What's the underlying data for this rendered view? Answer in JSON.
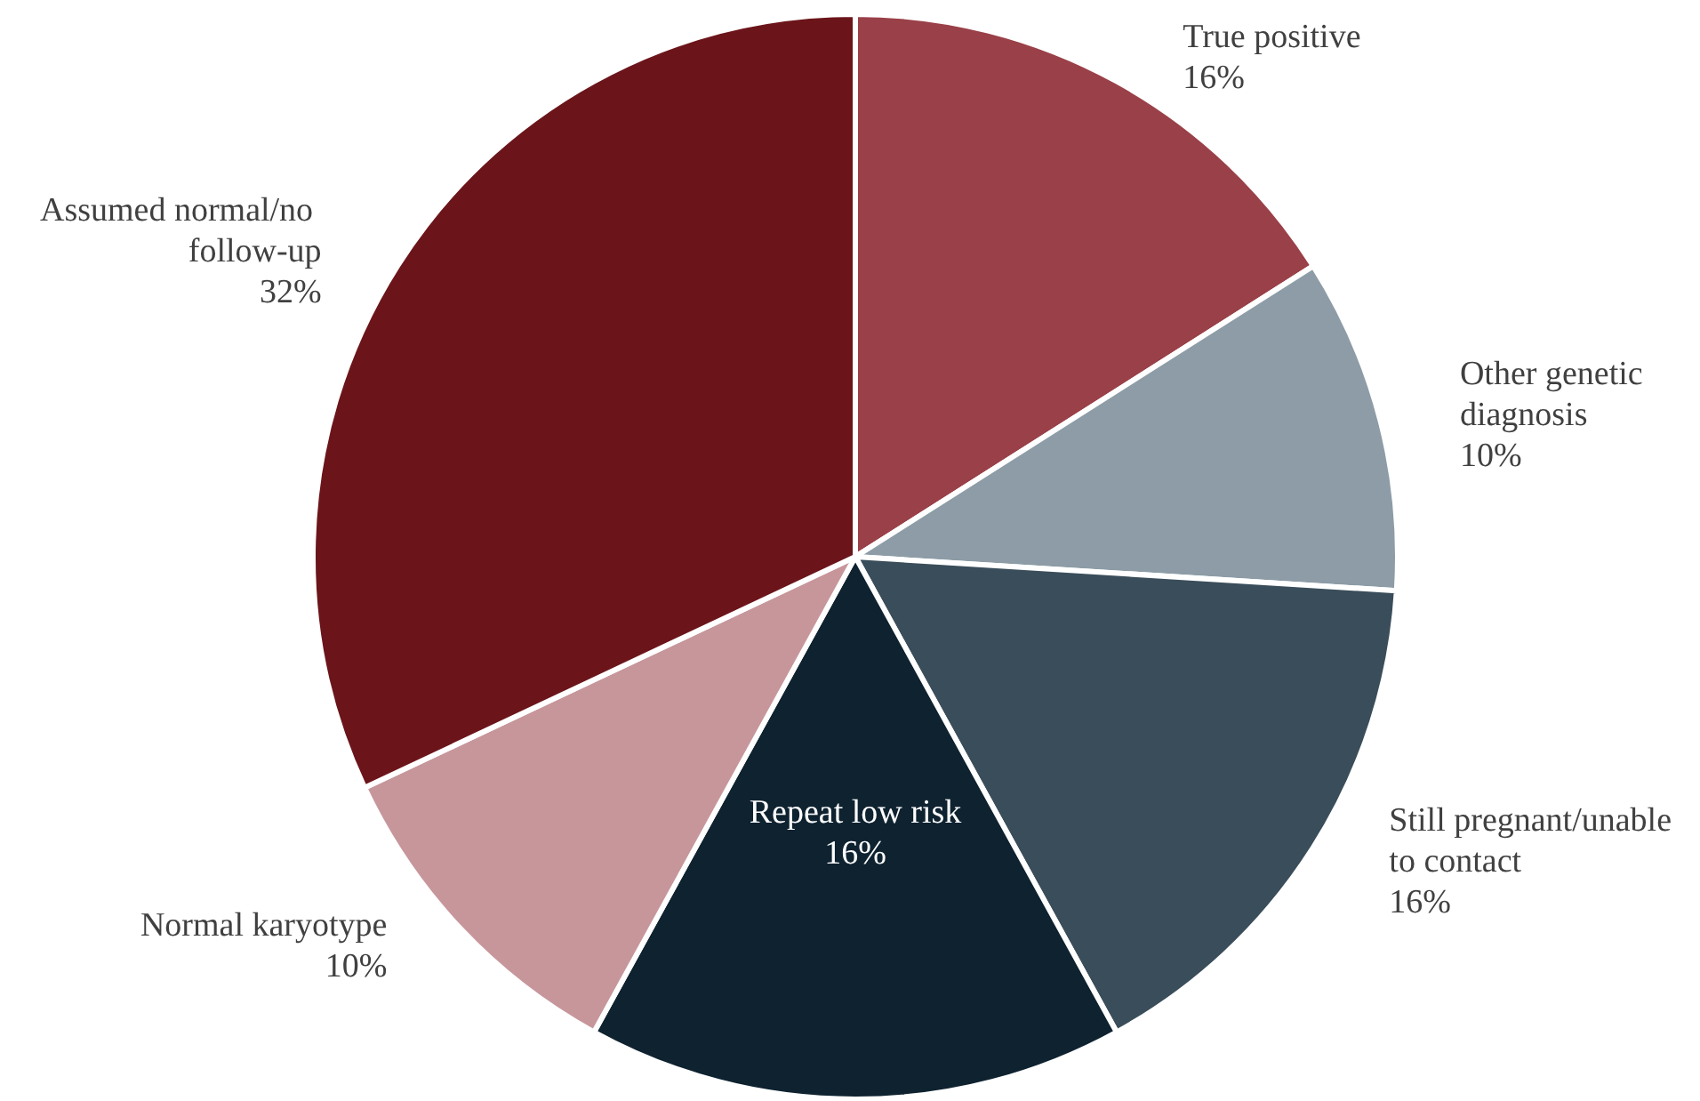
{
  "chart_data": {
    "type": "pie",
    "categories": [
      "True positive",
      "Other genetic diagnosis",
      "Still pregnant/unable to contact",
      "Repeat low risk",
      "Normal karyotype",
      "Assumed normal/no follow-up"
    ],
    "values": [
      16,
      10,
      16,
      16,
      10,
      32
    ],
    "value_labels": [
      "16%",
      "10%",
      "16%",
      "16%",
      "10%",
      "32%"
    ],
    "colors": [
      "#9a4048",
      "#8d9ca6",
      "#3a4d5a",
      "#0e2230",
      "#c7969b",
      "#6b151a"
    ]
  }
}
